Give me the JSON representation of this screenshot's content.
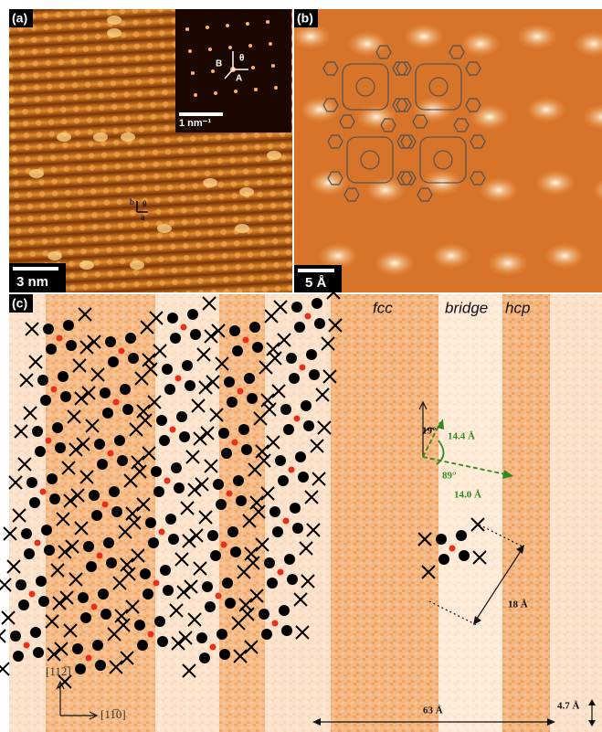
{
  "panels": [
    {
      "label": "(a)",
      "scale_bar": "3 nm",
      "inset_scale_bar": "1 nm⁻¹",
      "inset_labels": [
        "B",
        "A",
        "θ"
      ],
      "lattice_labels": [
        "b",
        "a",
        "θ"
      ]
    },
    {
      "label": "(b)",
      "scale_bar": "5 Å"
    },
    {
      "label": "(c)",
      "regions": [
        "fcc",
        "bridge",
        "hcp"
      ],
      "angles": [
        "19°",
        "89°"
      ],
      "vectors": [
        "14.4 Å",
        "14.0 Å"
      ],
      "distances": [
        "18 Å",
        "63 Å",
        "4.7 Å"
      ],
      "directions": [
        "[112̅]",
        "[11̅0]"
      ]
    }
  ]
}
